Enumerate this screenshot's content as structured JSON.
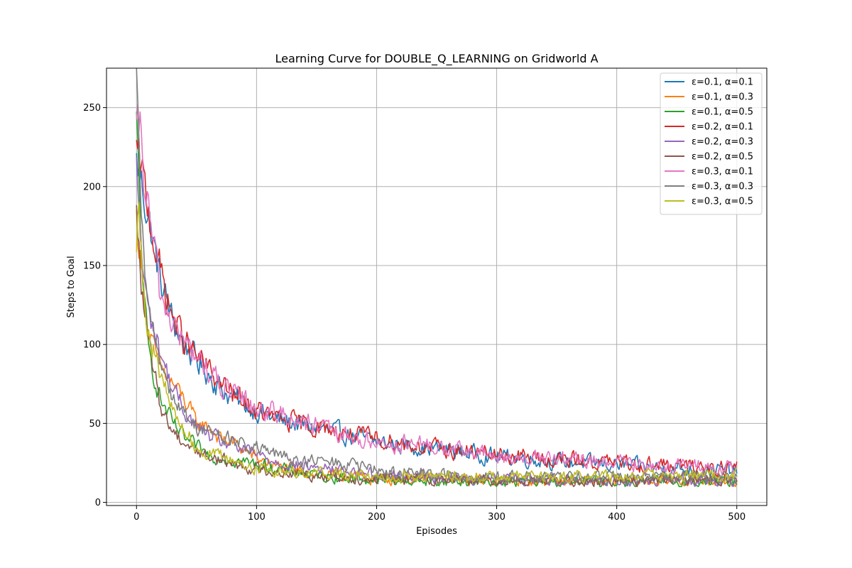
{
  "chart_data": {
    "type": "line",
    "title": "Learning Curve for DOUBLE_Q_LEARNING on Gridworld A",
    "xlabel": "Episodes",
    "ylabel": "Steps to Goal",
    "xlim": [
      -25,
      525
    ],
    "ylim": [
      -2,
      275
    ],
    "xticks": [
      0,
      100,
      200,
      300,
      400,
      500
    ],
    "yticks": [
      0,
      50,
      100,
      150,
      200,
      250
    ],
    "grid": true,
    "legend_position": "top-right",
    "x_start": 0,
    "x_end": 500,
    "series": [
      {
        "name": "ε=0.1, α=0.1",
        "color": "#1f77b4",
        "anchors": [
          [
            0,
            215
          ],
          [
            5,
            200
          ],
          [
            10,
            180
          ],
          [
            20,
            140
          ],
          [
            30,
            115
          ],
          [
            40,
            100
          ],
          [
            50,
            90
          ],
          [
            60,
            82
          ],
          [
            70,
            72
          ],
          [
            80,
            66
          ],
          [
            90,
            62
          ],
          [
            100,
            58
          ],
          [
            120,
            52
          ],
          [
            150,
            47
          ],
          [
            180,
            42
          ],
          [
            200,
            38
          ],
          [
            250,
            34
          ],
          [
            300,
            29
          ],
          [
            350,
            26
          ],
          [
            400,
            24
          ],
          [
            450,
            21
          ],
          [
            500,
            20
          ]
        ],
        "noise": 3
      },
      {
        "name": "ε=0.1, α=0.3",
        "color": "#ff7f0e",
        "anchors": [
          [
            0,
            180
          ],
          [
            5,
            140
          ],
          [
            10,
            110
          ],
          [
            15,
            95
          ],
          [
            20,
            85
          ],
          [
            30,
            75
          ],
          [
            40,
            65
          ],
          [
            50,
            50
          ],
          [
            60,
            48
          ],
          [
            70,
            40
          ],
          [
            80,
            38
          ],
          [
            90,
            33
          ],
          [
            100,
            28
          ],
          [
            120,
            22
          ],
          [
            150,
            18
          ],
          [
            200,
            15
          ],
          [
            300,
            14
          ],
          [
            400,
            13
          ],
          [
            500,
            14
          ]
        ],
        "noise": 2.5
      },
      {
        "name": "ε=0.1, α=0.5",
        "color": "#2ca02c",
        "anchors": [
          [
            0,
            240
          ],
          [
            3,
            180
          ],
          [
            6,
            130
          ],
          [
            10,
            95
          ],
          [
            15,
            80
          ],
          [
            20,
            65
          ],
          [
            30,
            50
          ],
          [
            40,
            40
          ],
          [
            50,
            35
          ],
          [
            60,
            30
          ],
          [
            80,
            27
          ],
          [
            100,
            24
          ],
          [
            150,
            17
          ],
          [
            200,
            14
          ],
          [
            300,
            13
          ],
          [
            400,
            13
          ],
          [
            500,
            13
          ]
        ],
        "noise": 2.5
      },
      {
        "name": "ε=0.2, α=0.1",
        "color": "#d62728",
        "anchors": [
          [
            0,
            220
          ],
          [
            5,
            205
          ],
          [
            10,
            185
          ],
          [
            20,
            145
          ],
          [
            30,
            118
          ],
          [
            40,
            102
          ],
          [
            50,
            92
          ],
          [
            60,
            84
          ],
          [
            70,
            75
          ],
          [
            80,
            68
          ],
          [
            90,
            63
          ],
          [
            100,
            58
          ],
          [
            120,
            52
          ],
          [
            150,
            48
          ],
          [
            180,
            43
          ],
          [
            200,
            40
          ],
          [
            250,
            34
          ],
          [
            300,
            30
          ],
          [
            350,
            27
          ],
          [
            400,
            25
          ],
          [
            450,
            23
          ],
          [
            500,
            22
          ]
        ],
        "noise": 3
      },
      {
        "name": "ε=0.2, α=0.3",
        "color": "#9467bd",
        "anchors": [
          [
            0,
            210
          ],
          [
            5,
            150
          ],
          [
            10,
            120
          ],
          [
            20,
            95
          ],
          [
            30,
            72
          ],
          [
            40,
            58
          ],
          [
            50,
            48
          ],
          [
            60,
            42
          ],
          [
            80,
            36
          ],
          [
            100,
            30
          ],
          [
            120,
            25
          ],
          [
            150,
            22
          ],
          [
            200,
            18
          ],
          [
            250,
            16
          ],
          [
            300,
            15
          ],
          [
            400,
            14
          ],
          [
            500,
            14
          ]
        ],
        "noise": 2.5
      },
      {
        "name": "ε=0.2, α=0.5",
        "color": "#8c564b",
        "anchors": [
          [
            0,
            180
          ],
          [
            5,
            130
          ],
          [
            10,
            100
          ],
          [
            15,
            80
          ],
          [
            20,
            62
          ],
          [
            25,
            52
          ],
          [
            30,
            46
          ],
          [
            40,
            38
          ],
          [
            50,
            33
          ],
          [
            60,
            29
          ],
          [
            80,
            25
          ],
          [
            100,
            21
          ],
          [
            150,
            17
          ],
          [
            200,
            15
          ],
          [
            300,
            14
          ],
          [
            400,
            14
          ],
          [
            500,
            15
          ]
        ],
        "noise": 2.5
      },
      {
        "name": "ε=0.3, α=0.1",
        "color": "#e377c2",
        "anchors": [
          [
            0,
            230
          ],
          [
            3,
            235
          ],
          [
            6,
            205
          ],
          [
            10,
            185
          ],
          [
            20,
            130
          ],
          [
            30,
            115
          ],
          [
            40,
            100
          ],
          [
            50,
            92
          ],
          [
            60,
            83
          ],
          [
            70,
            74
          ],
          [
            80,
            67
          ],
          [
            90,
            65
          ],
          [
            100,
            60
          ],
          [
            120,
            56
          ],
          [
            150,
            48
          ],
          [
            170,
            42
          ],
          [
            200,
            38
          ],
          [
            250,
            35
          ],
          [
            300,
            29
          ],
          [
            350,
            27
          ],
          [
            400,
            25
          ],
          [
            450,
            23
          ],
          [
            500,
            21
          ]
        ],
        "noise": 3
      },
      {
        "name": "ε=0.3, α=0.3",
        "color": "#7f7f7f",
        "anchors": [
          [
            0,
            262
          ],
          [
            3,
            200
          ],
          [
            6,
            150
          ],
          [
            10,
            120
          ],
          [
            20,
            90
          ],
          [
            30,
            68
          ],
          [
            40,
            55
          ],
          [
            50,
            48
          ],
          [
            70,
            42
          ],
          [
            90,
            36
          ],
          [
            100,
            34
          ],
          [
            130,
            27
          ],
          [
            150,
            26
          ],
          [
            180,
            24
          ],
          [
            200,
            20
          ],
          [
            250,
            18
          ],
          [
            300,
            16
          ],
          [
            400,
            16
          ],
          [
            500,
            17
          ]
        ],
        "noise": 2.5
      },
      {
        "name": "ε=0.3, α=0.5",
        "color": "#bcbd22",
        "anchors": [
          [
            0,
            168
          ],
          [
            2,
            200
          ],
          [
            5,
            140
          ],
          [
            10,
            110
          ],
          [
            20,
            80
          ],
          [
            30,
            58
          ],
          [
            40,
            45
          ],
          [
            50,
            35
          ],
          [
            60,
            31
          ],
          [
            80,
            27
          ],
          [
            100,
            21
          ],
          [
            150,
            19
          ],
          [
            200,
            17
          ],
          [
            300,
            16
          ],
          [
            400,
            17
          ],
          [
            500,
            17
          ]
        ],
        "noise": 2.5
      }
    ]
  }
}
